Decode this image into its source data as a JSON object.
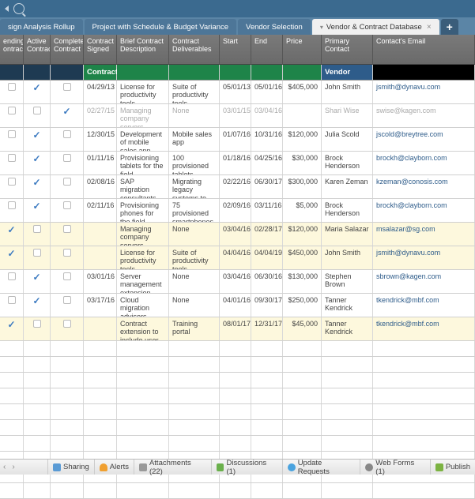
{
  "topbar": {},
  "tabs": {
    "items": [
      {
        "label": "sign Analysis Rollup",
        "active": false
      },
      {
        "label": "Project with Schedule & Budget Variance",
        "active": false
      },
      {
        "label": "Vendor Selection",
        "active": false
      },
      {
        "label": "Vendor & Contract Database",
        "active": true
      }
    ]
  },
  "columns": [
    {
      "label": "ending\nontract"
    },
    {
      "label": "Active\nContract"
    },
    {
      "label": "Completed\nContract"
    },
    {
      "label": "Contract\nSigned"
    },
    {
      "label": "Brief Contract\nDescription"
    },
    {
      "label": "Contract\nDeliverables"
    },
    {
      "label": "Start"
    },
    {
      "label": "End"
    },
    {
      "label": "Price"
    },
    {
      "label": "Primary\nContact"
    },
    {
      "label": "Contact's Email"
    }
  ],
  "filters": {
    "c3": "Contract",
    "c9": "Vendor"
  },
  "rows": [
    {
      "pending": false,
      "active": true,
      "completed": false,
      "signed": "04/29/13",
      "desc": "License for productivity tools",
      "deliv": "Suite of productivity tools",
      "start": "05/01/13",
      "end": "05/01/16",
      "price": "$405,000",
      "contact": "John Smith",
      "email": "jsmith@dynavu.com",
      "muted": false,
      "hl": false
    },
    {
      "pending": false,
      "active": false,
      "completed": true,
      "signed": "02/27/15",
      "desc": "Managing company servers",
      "deliv": "None",
      "start": "03/01/15",
      "end": "03/04/16",
      "price": "",
      "contact": "Shari Wise",
      "email": "swise@kagen.com",
      "muted": true,
      "hl": false
    },
    {
      "pending": false,
      "active": true,
      "completed": false,
      "signed": "12/30/15",
      "desc": "Development of mobile sales app",
      "deliv": "Mobile sales app",
      "start": "01/07/16",
      "end": "10/31/16",
      "price": "$120,000",
      "contact": "Julia Scold",
      "email": "jscold@breytree.com",
      "muted": false,
      "hl": false
    },
    {
      "pending": false,
      "active": true,
      "completed": false,
      "signed": "01/11/16",
      "desc": "Provisioning tablets for the field",
      "deliv": "100 provisioned tablets",
      "start": "01/18/16",
      "end": "04/25/16",
      "price": "$30,000",
      "contact": "Brock Henderson",
      "email": "brockh@clayborn.com",
      "muted": false,
      "hl": false
    },
    {
      "pending": false,
      "active": true,
      "completed": false,
      "signed": "02/08/16",
      "desc": "SAP migration consultants",
      "deliv": "Migrating legacy systems to SAP",
      "start": "02/22/16",
      "end": "06/30/17",
      "price": "$300,000",
      "contact": "Karen Zeman",
      "email": "kzeman@conosis.com",
      "muted": false,
      "hl": false
    },
    {
      "pending": false,
      "active": true,
      "completed": false,
      "signed": "02/11/16",
      "desc": "Provisioning phones for the field",
      "deliv": "75 provisioned smartphones",
      "start": "02/09/16",
      "end": "03/11/16",
      "price": "$5,000",
      "contact": "Brock Henderson",
      "email": "brockh@clayborn.com",
      "muted": false,
      "hl": false
    },
    {
      "pending": true,
      "active": false,
      "completed": false,
      "signed": "",
      "desc": "Managing company servers",
      "deliv": "None",
      "start": "03/04/16",
      "end": "02/28/17",
      "price": "$120,000",
      "contact": "Maria Salazar",
      "email": "msalazar@sg.com",
      "muted": false,
      "hl": true
    },
    {
      "pending": true,
      "active": false,
      "completed": false,
      "signed": "",
      "desc": "License for productivity tools",
      "deliv": "Suite of productivity tools",
      "start": "04/04/16",
      "end": "04/04/19",
      "price": "$450,000",
      "contact": "John Smith",
      "email": "jsmith@dynavu.com",
      "muted": false,
      "hl": true
    },
    {
      "pending": false,
      "active": true,
      "completed": false,
      "signed": "03/01/16",
      "desc": "Server management extension",
      "deliv": "None",
      "start": "03/04/16",
      "end": "06/30/16",
      "price": "$130,000",
      "contact": "Stephen Brown",
      "email": "sbrown@kagen.com",
      "muted": false,
      "hl": false
    },
    {
      "pending": false,
      "active": true,
      "completed": false,
      "signed": "03/17/16",
      "desc": "Cloud migration advisors",
      "deliv": "None",
      "start": "04/01/16",
      "end": "09/30/17",
      "price": "$250,000",
      "contact": "Tanner Kendrick",
      "email": "tkendrick@mbf.com",
      "muted": false,
      "hl": false
    },
    {
      "pending": true,
      "active": false,
      "completed": false,
      "signed": "",
      "desc": "Contract extension to include user training",
      "deliv": "Training portal",
      "start": "08/01/17",
      "end": "12/31/17",
      "price": "$45,000",
      "contact": "Tanner Kendrick",
      "email": "tkendrick@mbf.com",
      "muted": false,
      "hl": true
    }
  ],
  "emptyRows": 10,
  "bottombar": {
    "items": [
      {
        "label": "Sharing",
        "icon": "people"
      },
      {
        "label": "Alerts",
        "icon": "bell"
      },
      {
        "label": "Attachments (22)",
        "icon": "clip"
      },
      {
        "label": "Discussions (1)",
        "icon": "chat"
      },
      {
        "label": "Update Requests",
        "icon": "refresh"
      },
      {
        "label": "Web Forms (1)",
        "icon": "web"
      },
      {
        "label": "Publish",
        "icon": "pub"
      }
    ]
  }
}
